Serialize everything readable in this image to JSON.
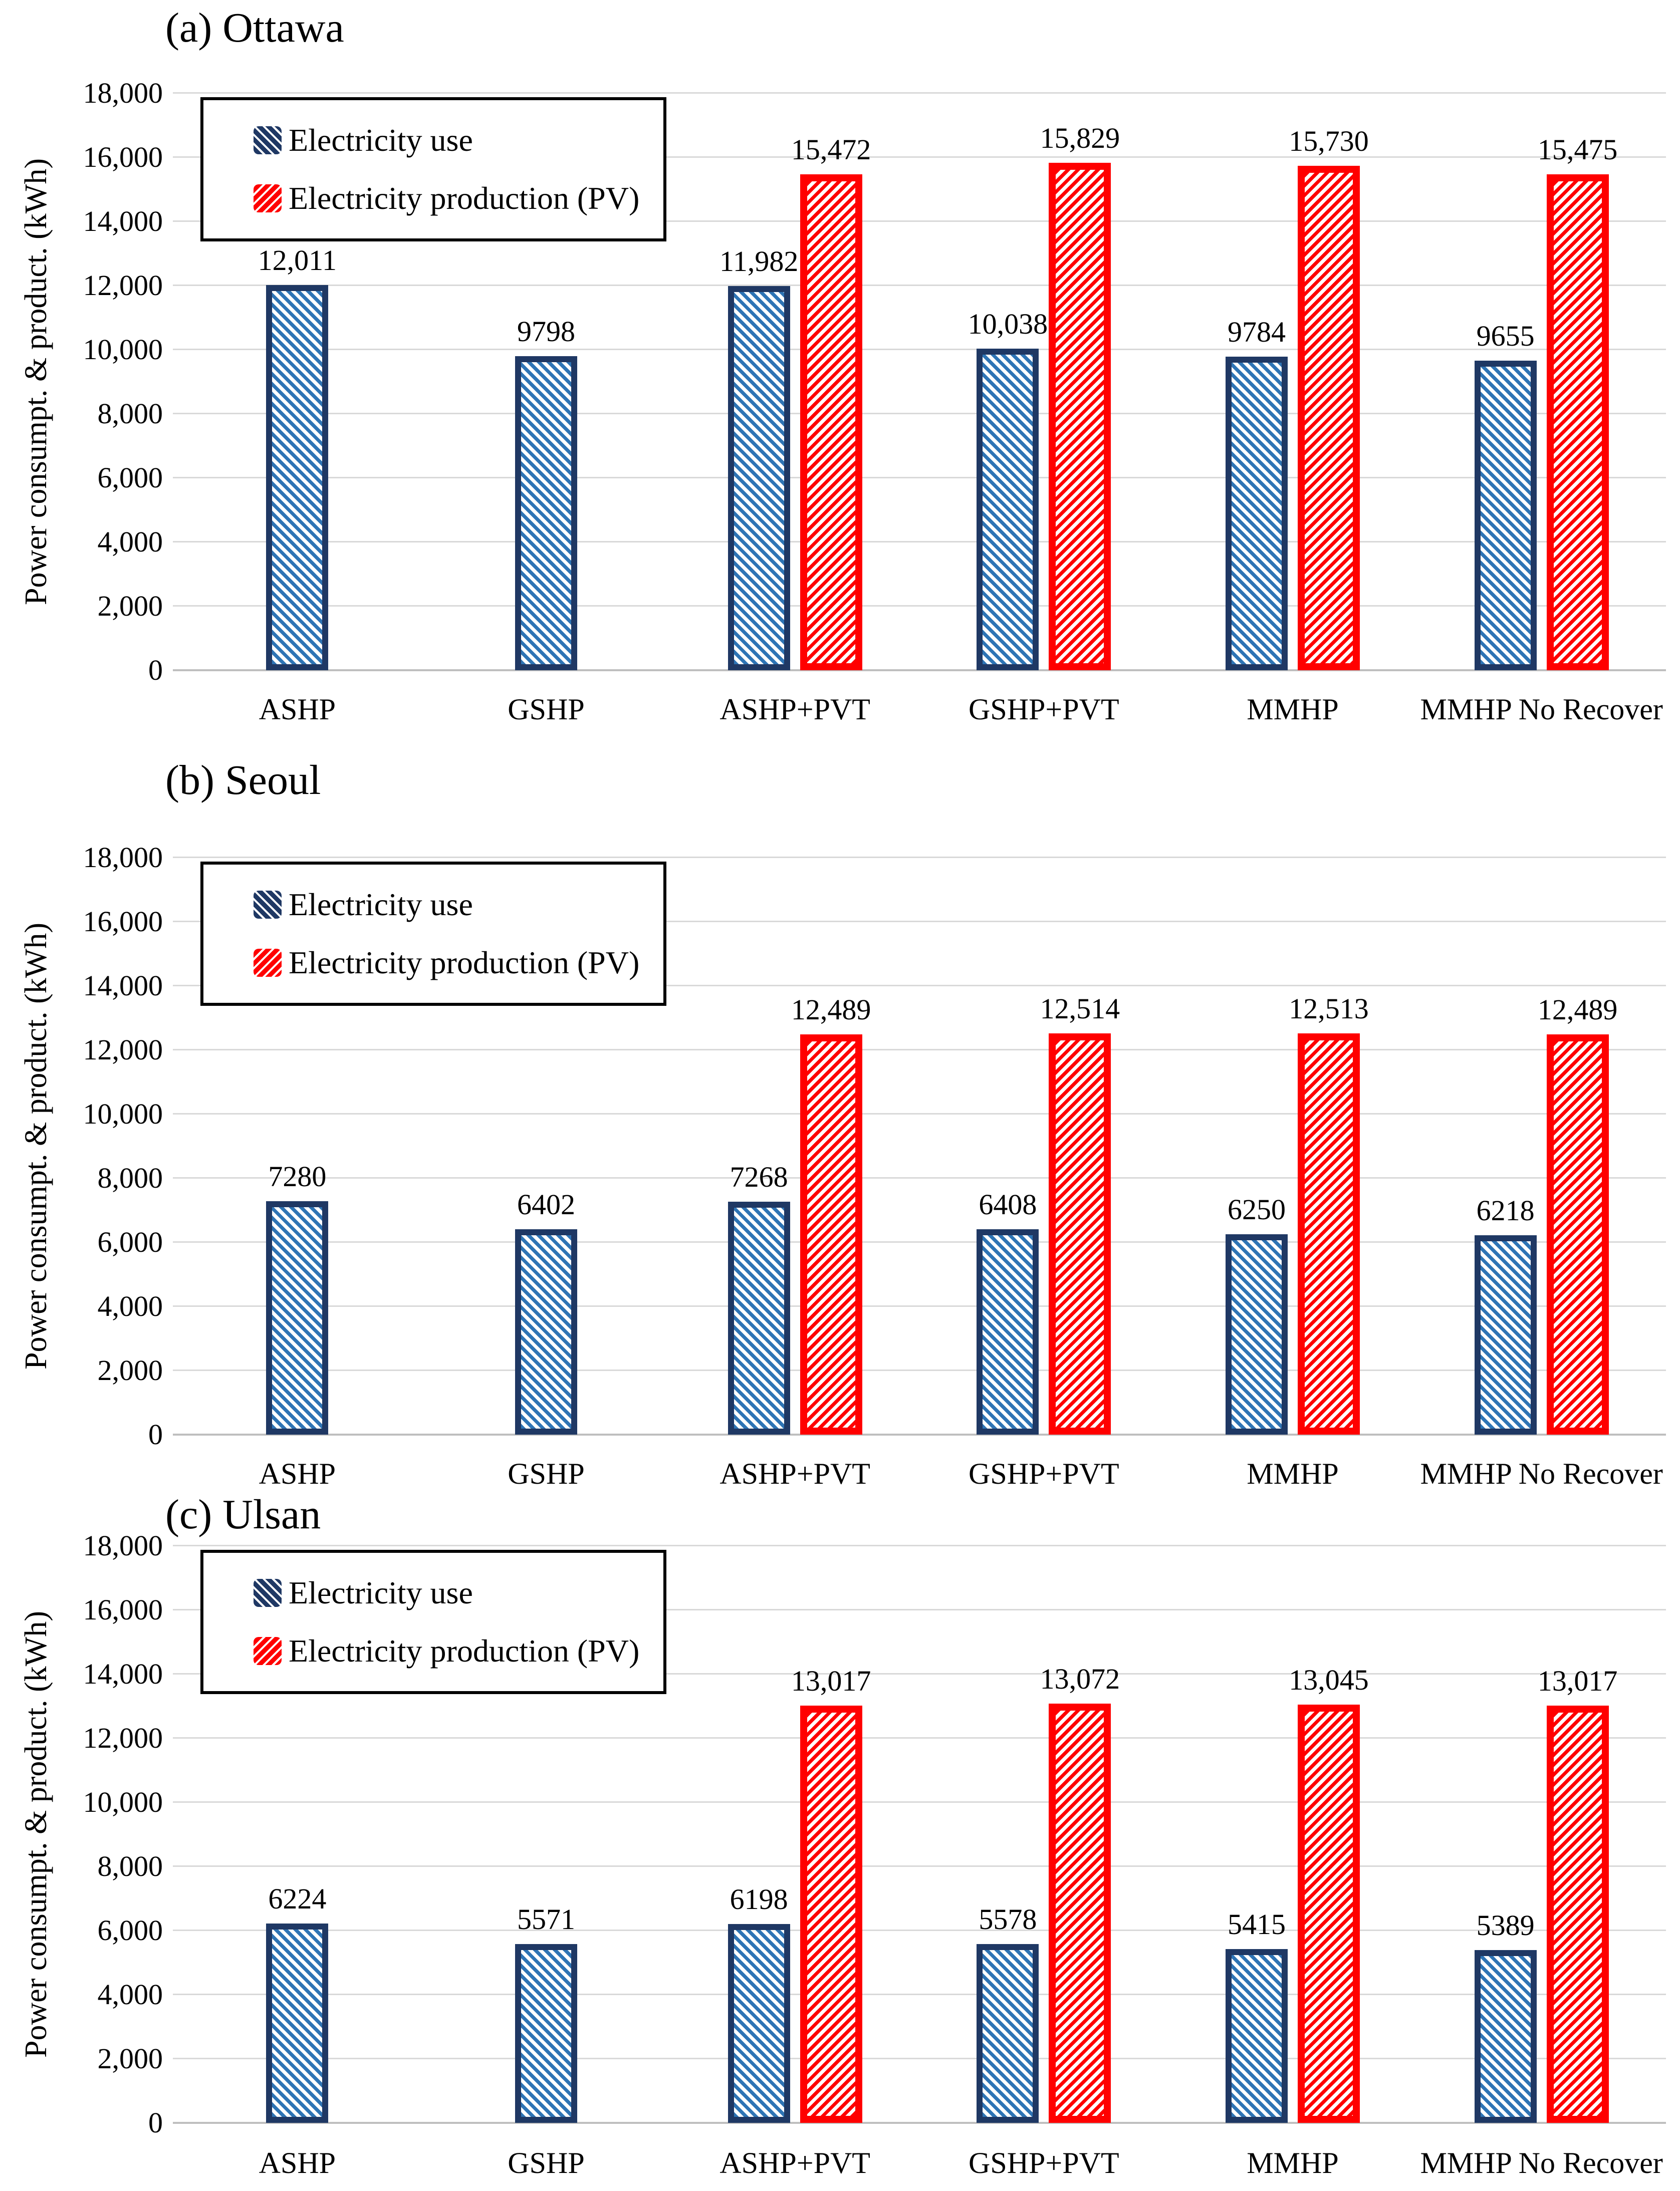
{
  "figure": {
    "background": "#FFFFFF",
    "font_color": "#000000"
  },
  "colors": {
    "use_border": "#1F3864",
    "use_hatch": "#2E74B5",
    "pv_border": "#FF0000",
    "pv_hatch": "#FF0000",
    "gridline": "#D9D9D9",
    "legend_border": "#000000"
  },
  "legend": {
    "use_label": "Electricity use",
    "pv_label": "Electricity production (PV)",
    "position": "top-left"
  },
  "chart_data": [
    {
      "type": "bar",
      "title": "(a) Ottawa",
      "ylabel": "Power consumpt.  & product.  (kWh)",
      "ylim": [
        0,
        18000
      ],
      "ytick_step": 2000,
      "ytick_labels": [
        "0",
        "2,000",
        "4,000",
        "6,000",
        "8,000",
        "10,000",
        "12,000",
        "14,000",
        "16,000",
        "18,000"
      ],
      "grid": true,
      "legend_position": "top-left",
      "categories": [
        "ASHP",
        "GSHP",
        "ASHP+PVT",
        "GSHP+PVT",
        "MMHP",
        "MMHP No Recover"
      ],
      "series": [
        {
          "name": "Electricity use",
          "values": [
            12011,
            9798,
            11982,
            10038,
            9784,
            9655
          ],
          "labels": [
            "12,011",
            "9798",
            "11,982",
            "10,038",
            "9784",
            "9655"
          ]
        },
        {
          "name": "Electricity production (PV)",
          "values": [
            null,
            null,
            15472,
            15829,
            15730,
            15475
          ],
          "labels": [
            null,
            null,
            "15,472",
            "15,829",
            "15,730",
            "15,475"
          ]
        }
      ]
    },
    {
      "type": "bar",
      "title": "(b) Seoul",
      "ylabel": "Power consumpt.  & product.  (kWh)",
      "ylim": [
        0,
        18000
      ],
      "ytick_step": 2000,
      "ytick_labels": [
        "0",
        "2,000",
        "4,000",
        "6,000",
        "8,000",
        "10,000",
        "12,000",
        "14,000",
        "16,000",
        "18,000"
      ],
      "grid": true,
      "legend_position": "top-left",
      "categories": [
        "ASHP",
        "GSHP",
        "ASHP+PVT",
        "GSHP+PVT",
        "MMHP",
        "MMHP No Recover"
      ],
      "series": [
        {
          "name": "Electricity use",
          "values": [
            7280,
            6402,
            7268,
            6408,
            6250,
            6218
          ],
          "labels": [
            "7280",
            "6402",
            "7268",
            "6408",
            "6250",
            "6218"
          ]
        },
        {
          "name": "Electricity production (PV)",
          "values": [
            null,
            null,
            12489,
            12514,
            12513,
            12489
          ],
          "labels": [
            null,
            null,
            "12,489",
            "12,514",
            "12,513",
            "12,489"
          ]
        }
      ]
    },
    {
      "type": "bar",
      "title": "(c) Ulsan",
      "ylabel": "Power consumpt.  & product.  (kWh)",
      "ylim": [
        0,
        18000
      ],
      "ytick_step": 2000,
      "ytick_labels": [
        "0",
        "2,000",
        "4,000",
        "6,000",
        "8,000",
        "10,000",
        "12,000",
        "14,000",
        "16,000",
        "18,000"
      ],
      "grid": true,
      "legend_position": "top-left",
      "categories": [
        "ASHP",
        "GSHP",
        "ASHP+PVT",
        "GSHP+PVT",
        "MMHP",
        "MMHP No Recover"
      ],
      "series": [
        {
          "name": "Electricity use",
          "values": [
            6224,
            5571,
            6198,
            5578,
            5415,
            5389
          ],
          "labels": [
            "6224",
            "5571",
            "6198",
            "5578",
            "5415",
            "5389"
          ]
        },
        {
          "name": "Electricity production (PV)",
          "values": [
            null,
            null,
            13017,
            13072,
            13045,
            13017
          ],
          "labels": [
            null,
            null,
            "13,017",
            "13,072",
            "13,045",
            "13,017"
          ]
        }
      ]
    }
  ]
}
